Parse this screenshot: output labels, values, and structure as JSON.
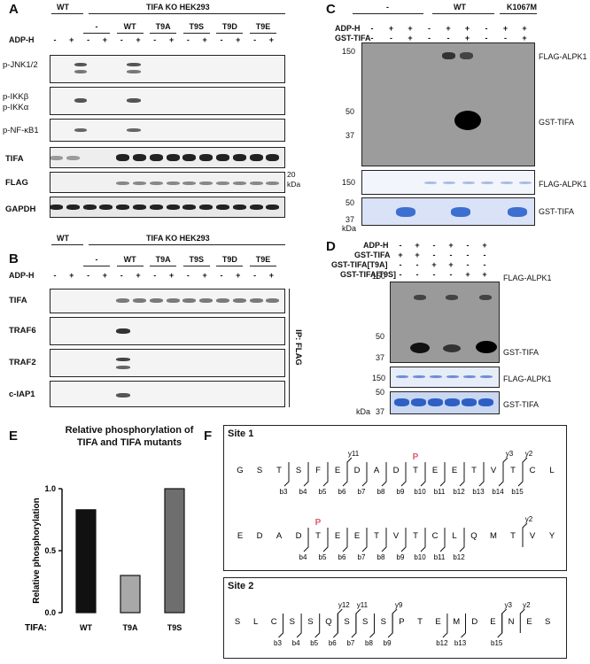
{
  "panels": {
    "A": {
      "label": "A",
      "header_wt": "WT",
      "header_ko": "TIFA KO HEK293",
      "groups": [
        "-",
        "WT",
        "T9A",
        "T9S",
        "T9D",
        "T9E"
      ],
      "adp_label": "ADP-H",
      "signs": [
        "-",
        "+",
        "-",
        "+",
        "-",
        "+",
        "-",
        "+",
        "-",
        "+",
        "-",
        "+",
        "-",
        "+"
      ],
      "rows": [
        "p-JNK1/2",
        "p-IKKβ\np-IKKα",
        "p-NF-κB1",
        "TIFA",
        "FLAG",
        "GAPDH"
      ],
      "row_ikkb": "p-IKKβ",
      "row_ikka": "p-IKKα",
      "marker": "20",
      "marker_unit": "kDa"
    },
    "B": {
      "label": "B",
      "header_wt": "WT",
      "header_ko": "TIFA KO HEK293",
      "groups": [
        "-",
        "WT",
        "T9A",
        "T9S",
        "T9D",
        "T9E"
      ],
      "adp_label": "ADP-H",
      "signs": [
        "-",
        "+",
        "-",
        "+",
        "-",
        "+",
        "-",
        "+",
        "-",
        "+",
        "-",
        "+",
        "-",
        "+"
      ],
      "rows": [
        "TIFA",
        "TRAF6",
        "TRAF2",
        "c-IAP1"
      ],
      "ip_label": "IP: FLAG"
    },
    "C": {
      "label": "C",
      "groups": [
        "-",
        "WT",
        "K1067M"
      ],
      "row_labels": [
        "ADP-H",
        "GST-TIFA"
      ],
      "signs_adp": [
        "-",
        "+",
        "+",
        "-",
        "+",
        "+",
        "-",
        "+",
        "+"
      ],
      "signs_gst": [
        "-",
        "-",
        "+",
        "-",
        "-",
        "+",
        "-",
        "-",
        "+"
      ],
      "markers": [
        "150",
        "50",
        "37",
        "150",
        "50",
        "37"
      ],
      "unit": "kDa",
      "right_labels": [
        "FLAG-ALPK1",
        "GST-TIFA",
        "FLAG-ALPK1",
        "GST-TIFA"
      ]
    },
    "D": {
      "label": "D",
      "row_labels": [
        "ADP-H",
        "GST-TIFA",
        "GST-TIFA[T9A]",
        "GST-TIFA[T9S]"
      ],
      "signs": [
        [
          "-",
          "+",
          "-",
          "+",
          "-",
          "+"
        ],
        [
          "+",
          "+",
          "-",
          "-",
          "-",
          "-"
        ],
        [
          "-",
          "-",
          "+",
          "+",
          "-",
          "-"
        ],
        [
          "-",
          "-",
          "-",
          "-",
          "+",
          "+"
        ]
      ],
      "markers": [
        "150",
        "50",
        "37",
        "150",
        "50",
        "37"
      ],
      "unit": "kDa",
      "right_labels": [
        "FLAG-ALPK1",
        "GST-TIFA",
        "FLAG-ALPK1",
        "GST-TIFA"
      ]
    },
    "E": {
      "label": "E",
      "title_line1": "Relative phosphorylation of",
      "title_line2": "TIFA and TIFA mutants",
      "ylabel": "Relative phosphorylation",
      "yticks": [
        "0.0",
        "0.5",
        "1.0"
      ],
      "xprefix": "TIFA:",
      "bar_colors": [
        "#111111",
        "#a8a8a8",
        "#6e6e6e"
      ]
    },
    "F": {
      "label": "F",
      "site1_title": "Site 1",
      "site2_title": "Site 2",
      "site1_row1": [
        "G",
        "S",
        "T",
        "S",
        "F",
        "E",
        "D",
        "A",
        "D",
        "T",
        "E",
        "E",
        "T",
        "V",
        "T",
        "C",
        "L"
      ],
      "site1_row1_b": [
        "b3",
        "b4",
        "b5",
        "b6",
        "b7",
        "b8",
        "b9",
        "b10",
        "b11",
        "b12",
        "b13",
        "b14",
        "b15"
      ],
      "site1_row1_y": [
        "y11",
        "y3",
        "y2"
      ],
      "site1_row2": [
        "E",
        "D",
        "A",
        "D",
        "T",
        "E",
        "E",
        "T",
        "V",
        "T",
        "C",
        "L",
        "Q",
        "M",
        "T",
        "V",
        "Y"
      ],
      "site1_row2_b": [
        "b4",
        "b5",
        "b6",
        "b7",
        "b8",
        "b9",
        "b10",
        "b11",
        "b12"
      ],
      "site1_row2_y": [
        "y2"
      ],
      "site2_row": [
        "S",
        "L",
        "C",
        "S",
        "S",
        "Q",
        "S",
        "S",
        "S",
        "P",
        "T",
        "E",
        "M",
        "D",
        "E",
        "N",
        "E",
        "S"
      ],
      "site2_b": [
        "b3",
        "b4",
        "b5",
        "b6",
        "b7",
        "b8",
        "b9",
        "b12",
        "b13",
        "b15"
      ],
      "site2_y": [
        "y12",
        "y11",
        "y9",
        "y3",
        "y2"
      ],
      "phospho": "P"
    }
  },
  "chart_data": {
    "type": "bar",
    "title": "Relative phosphorylation of TIFA and TIFA mutants",
    "categories": [
      "WT",
      "T9A",
      "T9S"
    ],
    "values": [
      0.83,
      0.3,
      1.0
    ],
    "xlabel": "TIFA:",
    "ylabel": "Relative phosphorylation",
    "ylim": [
      0,
      1.0
    ],
    "grid": false
  }
}
